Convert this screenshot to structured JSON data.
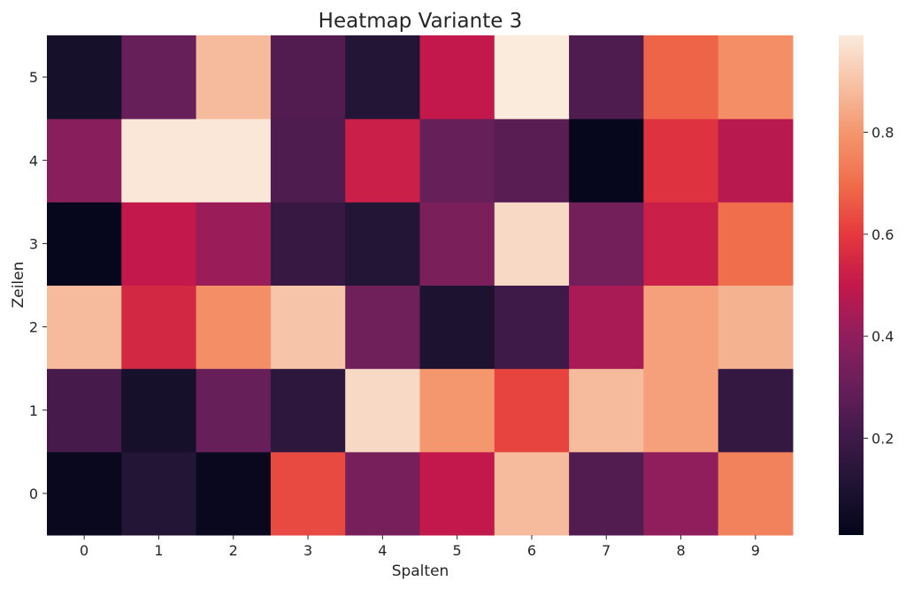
{
  "chart_data": {
    "type": "heatmap",
    "title": "Heatmap Variante 3",
    "xlabel": "Spalten",
    "ylabel": "Zeilen",
    "x_categories": [
      "0",
      "1",
      "2",
      "3",
      "4",
      "5",
      "6",
      "7",
      "8",
      "9"
    ],
    "y_categories": [
      "0",
      "1",
      "2",
      "3",
      "4",
      "5"
    ],
    "values": [
      [
        0.03,
        0.12,
        0.03,
        0.63,
        0.34,
        0.5,
        0.88,
        0.25,
        0.4,
        0.75
      ],
      [
        0.22,
        0.08,
        0.3,
        0.15,
        0.95,
        0.8,
        0.62,
        0.88,
        0.82,
        0.17
      ],
      [
        0.88,
        0.55,
        0.78,
        0.9,
        0.32,
        0.1,
        0.2,
        0.45,
        0.82,
        0.86
      ],
      [
        0.02,
        0.5,
        0.42,
        0.18,
        0.12,
        0.35,
        0.95,
        0.33,
        0.52,
        0.7
      ],
      [
        0.38,
        0.98,
        0.98,
        0.24,
        0.52,
        0.3,
        0.27,
        0.02,
        0.58,
        0.48
      ],
      [
        0.08,
        0.3,
        0.88,
        0.25,
        0.12,
        0.5,
        0.99,
        0.24,
        0.68,
        0.78
      ]
    ],
    "colormap": "rocket",
    "colorbar": {
      "ticks": [
        0.2,
        0.4,
        0.6,
        0.8
      ],
      "tick_labels": [
        "0.2",
        "0.4",
        "0.6",
        "0.8"
      ],
      "range": [
        0.01,
        0.99
      ]
    },
    "grid": false
  }
}
